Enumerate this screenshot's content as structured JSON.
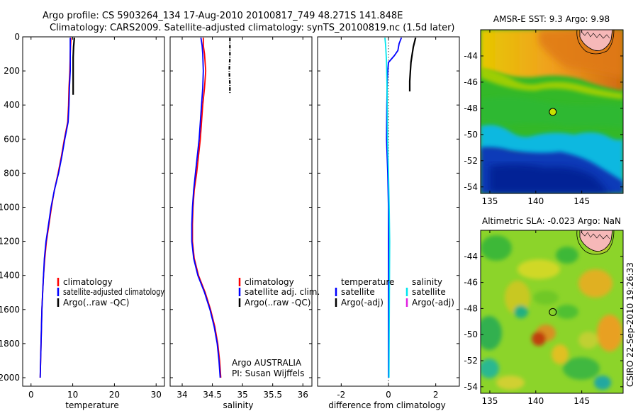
{
  "header": {
    "line1": "Argo profile: CS 5903264_134 17-Aug-2010 20100817_749 48.271S 141.848E",
    "line2": "Climatology: CARS2009. Satellite-adjusted climatology: synTS_20100819.nc (1.5d later)"
  },
  "colors": {
    "climatology": "#ff0000",
    "satellite": "#0000ff",
    "argo": "#000000",
    "cyan": "#00e5ee",
    "magenta": "#e020e0"
  },
  "chart_data": [
    {
      "type": "line",
      "id": "temperature",
      "xlabel": "temperature",
      "ylabel": "",
      "xlim": [
        -2,
        32
      ],
      "ylim": [
        2050,
        0
      ],
      "xticks": [
        0,
        10,
        20,
        30
      ],
      "xtick_labels": [
        "0",
        "10",
        "20",
        "30"
      ],
      "yticks": [
        0,
        200,
        400,
        600,
        800,
        1000,
        1200,
        1400,
        1600,
        1800,
        2000
      ],
      "ytick_labels": [
        "0",
        "200",
        "400",
        "600",
        "800",
        "1000",
        "1200",
        "1400",
        "1600",
        "1800",
        "2000"
      ],
      "legend": [
        "climatology",
        "satellite-adjusted climatology",
        "Argo(..raw -QC)"
      ],
      "series": [
        {
          "name": "climatology",
          "color": "climatology",
          "points": [
            [
              9.6,
              5
            ],
            [
              9.5,
              50
            ],
            [
              9.4,
              100
            ],
            [
              9.3,
              200
            ],
            [
              9.1,
              300
            ],
            [
              9.0,
              400
            ],
            [
              8.8,
              500
            ],
            [
              8.0,
              600
            ],
            [
              7.3,
              700
            ],
            [
              6.5,
              800
            ],
            [
              5.6,
              900
            ],
            [
              4.9,
              1000
            ],
            [
              4.3,
              1100
            ],
            [
              3.7,
              1200
            ],
            [
              3.3,
              1300
            ],
            [
              3.0,
              1400
            ],
            [
              2.8,
              1500
            ],
            [
              2.6,
              1600
            ],
            [
              2.5,
              1700
            ],
            [
              2.4,
              1800
            ],
            [
              2.3,
              1900
            ],
            [
              2.2,
              2000
            ]
          ]
        },
        {
          "name": "satellite",
          "color": "satellite",
          "points": [
            [
              9.4,
              5
            ],
            [
              9.4,
              50
            ],
            [
              9.4,
              100
            ],
            [
              9.4,
              200
            ],
            [
              9.2,
              300
            ],
            [
              9.1,
              400
            ],
            [
              8.9,
              500
            ],
            [
              8.1,
              600
            ],
            [
              7.4,
              700
            ],
            [
              6.6,
              800
            ],
            [
              5.6,
              900
            ],
            [
              4.8,
              1000
            ],
            [
              4.2,
              1100
            ],
            [
              3.6,
              1200
            ],
            [
              3.2,
              1300
            ],
            [
              3.0,
              1400
            ],
            [
              2.8,
              1500
            ],
            [
              2.6,
              1600
            ],
            [
              2.5,
              1700
            ],
            [
              2.4,
              1800
            ],
            [
              2.3,
              1900
            ],
            [
              2.2,
              2000
            ]
          ]
        },
        {
          "name": "argo",
          "color": "argo",
          "points": [
            [
              10.4,
              5
            ],
            [
              10.2,
              60
            ],
            [
              10.1,
              120
            ],
            [
              10.1,
              200
            ],
            [
              10.1,
              280
            ],
            [
              10.1,
              340
            ]
          ]
        }
      ]
    },
    {
      "type": "line",
      "id": "salinity",
      "xlabel": "salinity",
      "ylabel": "",
      "xlim": [
        33.8,
        36.15
      ],
      "ylim": [
        2050,
        0
      ],
      "xticks": [
        34,
        34.5,
        35,
        35.5,
        36
      ],
      "xtick_labels": [
        "34",
        "34.5",
        "35",
        "35.5",
        "36"
      ],
      "legend": [
        "climatology",
        "satellite adj. clim.",
        "Argo(..raw -QC)"
      ],
      "annotations": [
        "Argo AUSTRALIA",
        "PI: Susan Wijffels"
      ],
      "series": [
        {
          "name": "climatology",
          "color": "climatology",
          "points": [
            [
              34.35,
              5
            ],
            [
              34.35,
              50
            ],
            [
              34.37,
              100
            ],
            [
              34.39,
              200
            ],
            [
              34.37,
              300
            ],
            [
              34.34,
              400
            ],
            [
              34.32,
              500
            ],
            [
              34.3,
              600
            ],
            [
              34.27,
              700
            ],
            [
              34.24,
              800
            ],
            [
              34.2,
              900
            ],
            [
              34.18,
              1000
            ],
            [
              34.17,
              1100
            ],
            [
              34.17,
              1200
            ],
            [
              34.2,
              1300
            ],
            [
              34.27,
              1400
            ],
            [
              34.38,
              1500
            ],
            [
              34.47,
              1600
            ],
            [
              34.54,
              1700
            ],
            [
              34.59,
              1800
            ],
            [
              34.62,
              1900
            ],
            [
              34.64,
              2000
            ]
          ]
        },
        {
          "name": "satellite",
          "color": "satellite",
          "points": [
            [
              34.31,
              5
            ],
            [
              34.33,
              50
            ],
            [
              34.34,
              100
            ],
            [
              34.35,
              200
            ],
            [
              34.34,
              300
            ],
            [
              34.32,
              400
            ],
            [
              34.3,
              500
            ],
            [
              34.28,
              600
            ],
            [
              34.25,
              700
            ],
            [
              34.22,
              800
            ],
            [
              34.19,
              900
            ],
            [
              34.17,
              1000
            ],
            [
              34.16,
              1100
            ],
            [
              34.16,
              1200
            ],
            [
              34.19,
              1300
            ],
            [
              34.26,
              1400
            ],
            [
              34.37,
              1500
            ],
            [
              34.46,
              1600
            ],
            [
              34.53,
              1700
            ],
            [
              34.58,
              1800
            ],
            [
              34.61,
              1900
            ],
            [
              34.63,
              2000
            ]
          ]
        },
        {
          "name": "argo",
          "color": "argo",
          "dashed": true,
          "points": [
            [
              34.79,
              5
            ],
            [
              34.79,
              60
            ],
            [
              34.79,
              120
            ],
            [
              34.78,
              200
            ],
            [
              34.79,
              280
            ],
            [
              34.79,
              330
            ]
          ]
        }
      ]
    },
    {
      "type": "line",
      "id": "difference",
      "xlabel": "difference from climatology",
      "ylabel": "",
      "xlim": [
        -3.0,
        3.0
      ],
      "ylim": [
        2050,
        0
      ],
      "xticks": [
        -2,
        0,
        2
      ],
      "xtick_labels": [
        "-2",
        "0",
        "2"
      ],
      "legend_left": [
        "temperature",
        "satellite",
        "Argo(-adj)"
      ],
      "legend_right": [
        "salinity",
        "satellite",
        "Argo(-adj)"
      ],
      "series": [
        {
          "name": "temperature satellite",
          "color": "satellite",
          "points": [
            [
              0.55,
              5
            ],
            [
              0.45,
              40
            ],
            [
              0.4,
              80
            ],
            [
              0.25,
              110
            ],
            [
              0.0,
              150
            ],
            [
              -0.05,
              250
            ],
            [
              -0.07,
              400
            ],
            [
              -0.08,
              600
            ],
            [
              -0.03,
              800
            ],
            [
              0.0,
              1000
            ],
            [
              0.0,
              1400
            ],
            [
              0.0,
              2000
            ]
          ]
        },
        {
          "name": "salinity satellite",
          "color": "cyan",
          "points": [
            [
              -0.15,
              5
            ],
            [
              -0.12,
              50
            ],
            [
              -0.08,
              150
            ],
            [
              -0.06,
              300
            ],
            [
              -0.04,
              600
            ],
            [
              0.0,
              800
            ],
            [
              0.03,
              1000
            ],
            [
              0.05,
              1200
            ],
            [
              0.04,
              1500
            ],
            [
              0.02,
              2000
            ]
          ]
        },
        {
          "name": "temperature argo",
          "color": "argo",
          "points": [
            [
              1.15,
              5
            ],
            [
              1.05,
              60
            ],
            [
              0.95,
              150
            ],
            [
              0.9,
              260
            ],
            [
              0.9,
              320
            ]
          ]
        }
      ]
    },
    {
      "type": "heatmap",
      "id": "sst-map",
      "title": "AMSR-E SST: 9.3 Argo: 9.98",
      "xlim": [
        134,
        149.5
      ],
      "ylim": [
        -54.5,
        -42
      ],
      "xticks": [
        135,
        140,
        145
      ],
      "xtick_labels": [
        "135",
        "140",
        "145"
      ],
      "yticks": [
        -44,
        -46,
        -48,
        -50,
        -52,
        -54
      ],
      "ytick_labels": [
        "-44",
        "-46",
        "-48",
        "-50",
        "-52",
        "-54"
      ],
      "float_position": [
        141.85,
        -48.27
      ]
    },
    {
      "type": "heatmap",
      "id": "sla-map",
      "title": "Altimetric SLA: -0.023 Argo: NaN",
      "xlim": [
        134,
        149.5
      ],
      "ylim": [
        -54.5,
        -42
      ],
      "xticks": [
        135,
        140,
        145
      ],
      "xtick_labels": [
        "135",
        "140",
        "145"
      ],
      "yticks": [
        -44,
        -46,
        -48,
        -50,
        -52,
        -54
      ],
      "ytick_labels": [
        "-44",
        "-46",
        "-48",
        "-50",
        "-52",
        "-54"
      ],
      "float_position": [
        141.85,
        -48.27
      ]
    }
  ],
  "side_label": "CSIRO 22-Sep-2010 19:26:33"
}
